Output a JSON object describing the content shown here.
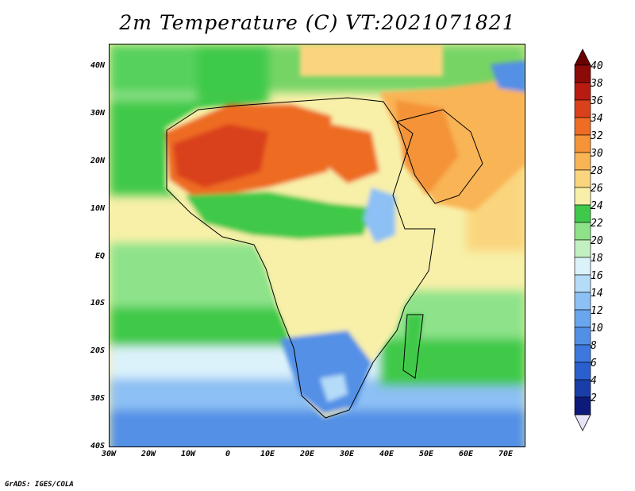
{
  "title": "2m Temperature (C) VT:2021071821",
  "credit": "GrADS: IGES/COLA",
  "map": {
    "lat_ticks": [
      "40N",
      "30N",
      "20N",
      "10N",
      "EQ",
      "10S",
      "20S",
      "30S",
      "40S"
    ],
    "lon_ticks": [
      "30W",
      "20W",
      "10W",
      "0",
      "10E",
      "20E",
      "30E",
      "40E",
      "50E",
      "60E",
      "70E"
    ]
  },
  "colorbar": {
    "labels": [
      "2",
      "4",
      "6",
      "8",
      "10",
      "12",
      "14",
      "16",
      "18",
      "20",
      "22",
      "24",
      "26",
      "28",
      "30",
      "32",
      "34",
      "36",
      "38",
      "40"
    ],
    "colors": [
      "#0d1a7a",
      "#1a3ea8",
      "#2a5fcf",
      "#3c78de",
      "#5290e6",
      "#6aa6ee",
      "#8dc0f4",
      "#b4dbf8",
      "#dcf2fb",
      "#c3f0c0",
      "#8ee38a",
      "#3fc94a",
      "#f8f0a8",
      "#fad57e",
      "#f9b454",
      "#f49338",
      "#ee6c24",
      "#d9411a",
      "#b81c10",
      "#8c0a08"
    ],
    "under_color": "#e8e4f8",
    "over_color": "#6a0000"
  }
}
